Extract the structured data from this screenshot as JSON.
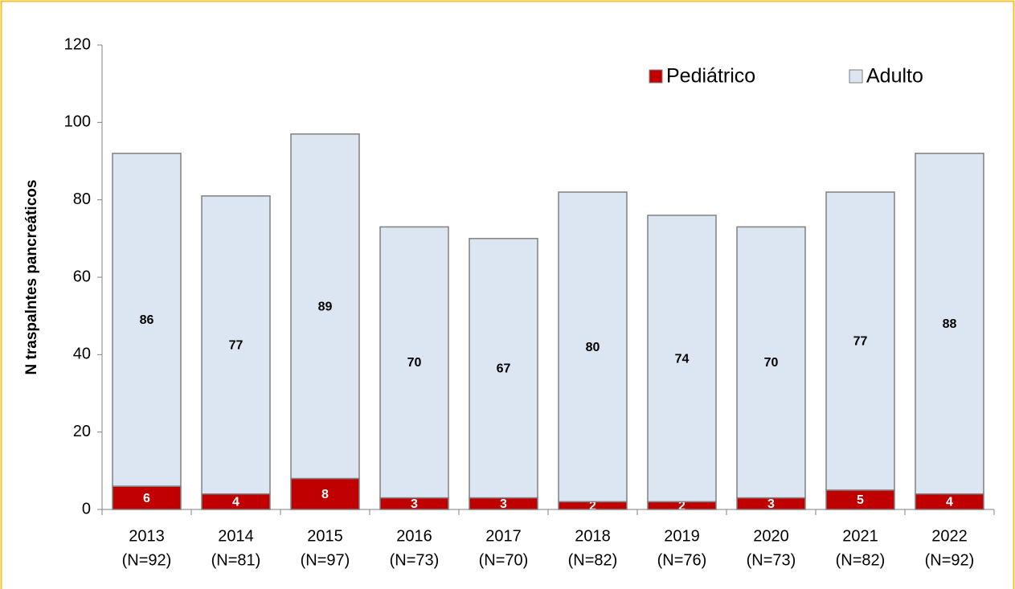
{
  "chart_data": {
    "type": "stacked_bar",
    "y_label": "N traspalntes pancreáticos",
    "categories": [
      [
        "2013",
        "(N=92)"
      ],
      [
        "2014",
        "(N=81)"
      ],
      [
        "2015",
        "(N=97)"
      ],
      [
        "2016",
        "(N=73)"
      ],
      [
        "2017",
        "(N=70)"
      ],
      [
        "2018",
        "(N=82)"
      ],
      [
        "2019",
        "(N=76)"
      ],
      [
        "2020",
        "(N=73)"
      ],
      [
        "2021",
        "(N=82)"
      ],
      [
        "2022",
        "(N=92)"
      ]
    ],
    "series": [
      {
        "name": "Pediátrico",
        "color": "#c00000",
        "label_color": "#ffffff",
        "values": [
          6,
          4,
          8,
          3,
          3,
          2,
          2,
          3,
          5,
          4
        ]
      },
      {
        "name": "Adulto",
        "color": "#dce6f2",
        "label_color": "#000000",
        "values": [
          86,
          77,
          89,
          70,
          67,
          80,
          74,
          70,
          77,
          88
        ]
      }
    ],
    "ylim": [
      0,
      120
    ],
    "yticks": [
      0,
      20,
      40,
      60,
      80,
      100,
      120
    ],
    "legend": "top-right"
  }
}
